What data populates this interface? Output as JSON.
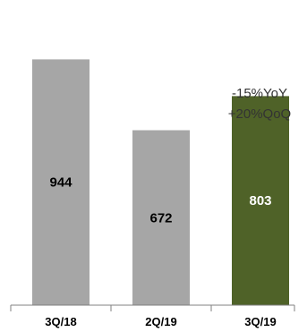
{
  "chart_data": {
    "type": "bar",
    "categories": [
      "3Q/18",
      "2Q/19",
      "3Q/19"
    ],
    "values": [
      944,
      672,
      803
    ],
    "ylim": [
      0,
      1100
    ],
    "grid": false,
    "title": "",
    "xlabel": "",
    "ylabel": "",
    "colors": {
      "bar_default": "#a6a6a6",
      "bar_highlight": "#4f6228",
      "label_dark": "#000000",
      "label_light": "#ffffff",
      "axis": "#808080"
    },
    "highlight_index": 2,
    "annotation": {
      "category": "3Q/19",
      "lines": [
        "-15%YoY",
        "+20%QoQ"
      ]
    }
  }
}
